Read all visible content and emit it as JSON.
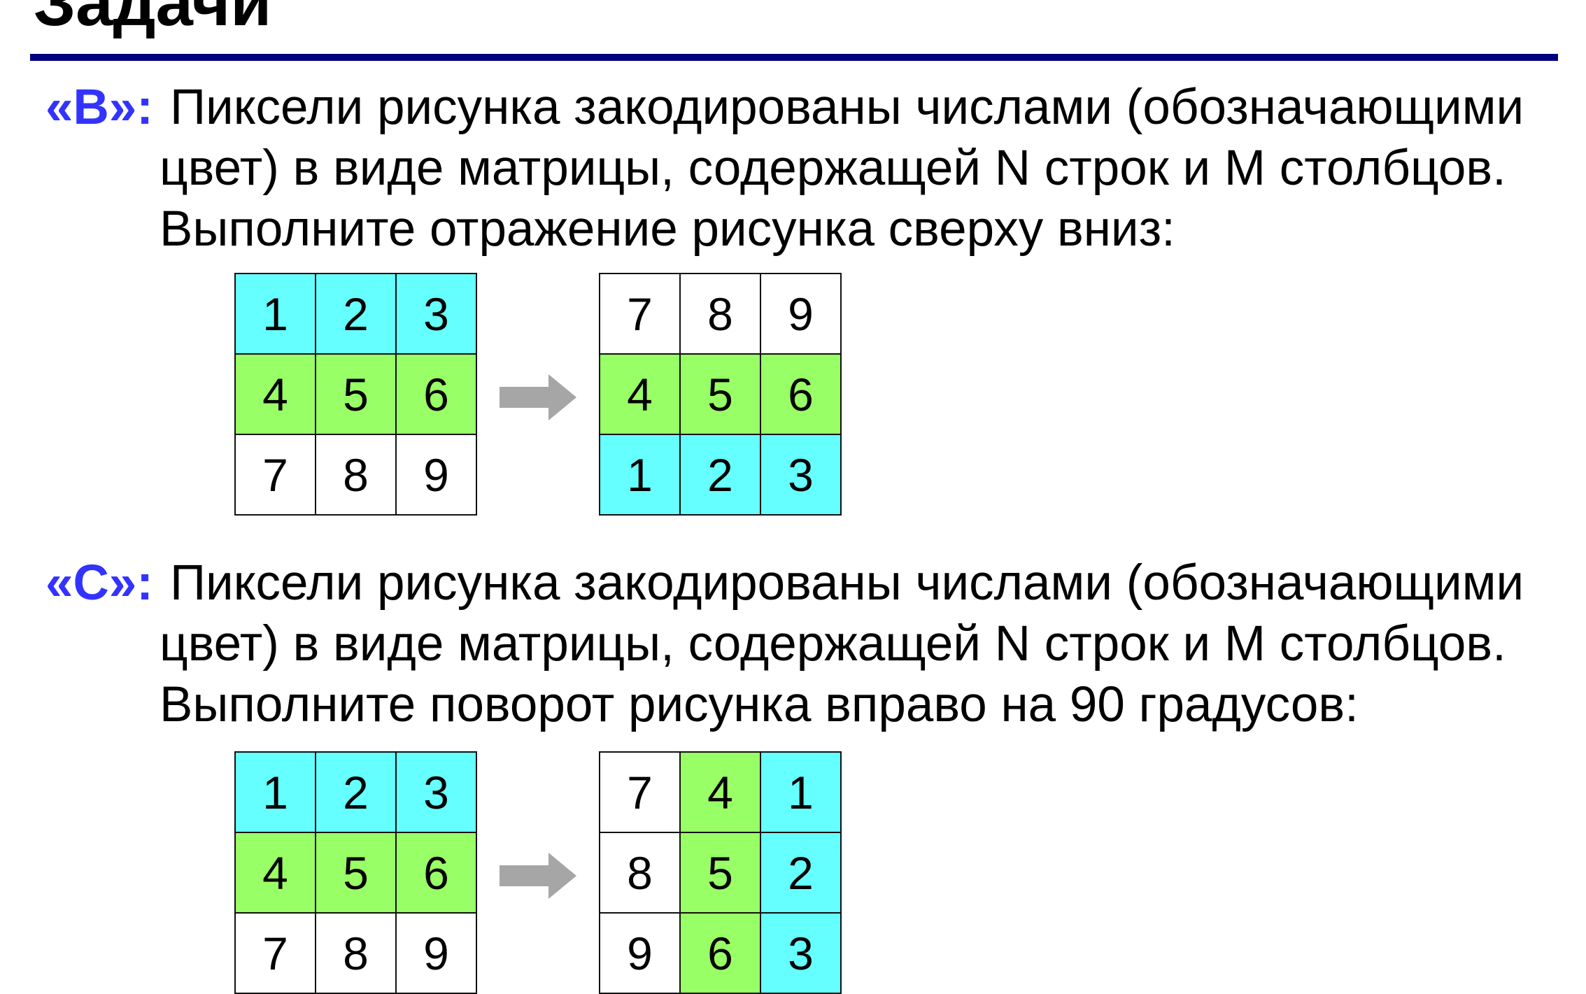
{
  "title": "Задачи",
  "colors": {
    "rule": "#000080",
    "label": "#3333ff",
    "cyan": "#66ffff",
    "green": "#99ff66",
    "white": "#ffffff",
    "arrow": "#a6a6a6"
  },
  "task_b": {
    "label": "«В»:",
    "lines": [
      "Пиксели рисунка закодированы числами (обозначающими",
      "цвет) в виде матрицы, содержащей N строк и M столбцов.",
      "Выполните отражение рисунка сверху вниз:"
    ],
    "before": {
      "values": [
        [
          1,
          2,
          3
        ],
        [
          4,
          5,
          6
        ],
        [
          7,
          8,
          9
        ]
      ],
      "colors": [
        [
          "cyan",
          "cyan",
          "cyan"
        ],
        [
          "green",
          "green",
          "green"
        ],
        [
          "white",
          "white",
          "white"
        ]
      ]
    },
    "after": {
      "values": [
        [
          7,
          8,
          9
        ],
        [
          4,
          5,
          6
        ],
        [
          1,
          2,
          3
        ]
      ],
      "colors": [
        [
          "white",
          "white",
          "white"
        ],
        [
          "green",
          "green",
          "green"
        ],
        [
          "cyan",
          "cyan",
          "cyan"
        ]
      ]
    }
  },
  "task_c": {
    "label": "«С»:",
    "lines": [
      "Пиксели рисунка закодированы числами (обозначающими",
      "цвет) в виде матрицы, содержащей N строк и M столбцов.",
      "Выполните поворот рисунка вправо на 90 градусов:"
    ],
    "before": {
      "values": [
        [
          1,
          2,
          3
        ],
        [
          4,
          5,
          6
        ],
        [
          7,
          8,
          9
        ]
      ],
      "colors": [
        [
          "cyan",
          "cyan",
          "cyan"
        ],
        [
          "green",
          "green",
          "green"
        ],
        [
          "white",
          "white",
          "white"
        ]
      ]
    },
    "after": {
      "values": [
        [
          7,
          4,
          1
        ],
        [
          8,
          5,
          2
        ],
        [
          9,
          6,
          3
        ]
      ],
      "colors": [
        [
          "white",
          "green",
          "cyan"
        ],
        [
          "white",
          "green",
          "cyan"
        ],
        [
          "white",
          "green",
          "cyan"
        ]
      ]
    }
  }
}
